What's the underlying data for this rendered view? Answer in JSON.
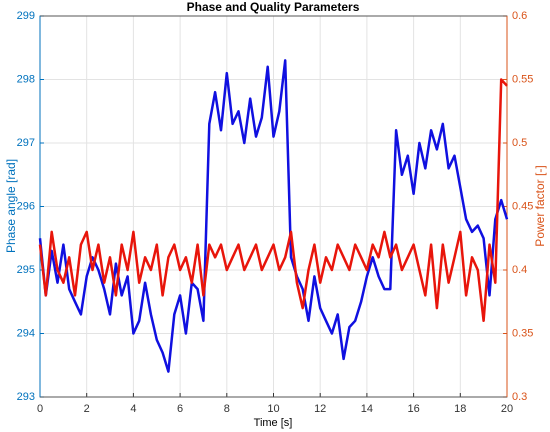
{
  "chart_data": {
    "type": "line",
    "title": "Phase and Quality Parameters",
    "xlabel": "Time [s]",
    "ylabel": "Phase angle [rad]",
    "y2label": "Power factor [-]",
    "x": [
      0,
      0.25,
      0.5,
      0.75,
      1,
      1.25,
      1.5,
      1.75,
      2,
      2.25,
      2.5,
      2.75,
      3,
      3.25,
      3.5,
      3.75,
      4,
      4.25,
      4.5,
      4.75,
      5,
      5.25,
      5.5,
      5.75,
      6,
      6.25,
      6.5,
      6.75,
      7,
      7.25,
      7.5,
      7.75,
      8,
      8.25,
      8.5,
      8.75,
      9,
      9.25,
      9.5,
      9.75,
      10,
      10.25,
      10.5,
      10.75,
      11,
      11.25,
      11.5,
      11.75,
      12,
      12.25,
      12.5,
      12.75,
      13,
      13.25,
      13.5,
      13.75,
      14,
      14.25,
      14.5,
      14.75,
      15,
      15.25,
      15.5,
      15.75,
      16,
      16.25,
      16.5,
      16.75,
      17,
      17.25,
      17.5,
      17.75,
      18,
      18.25,
      18.5,
      18.75,
      19,
      19.25,
      19.5,
      19.75,
      20
    ],
    "series": [
      {
        "name": "Phase angle",
        "color": "#1010e0",
        "axis": "y",
        "values": [
          295.5,
          294.6,
          295.3,
          294.8,
          295.4,
          294.7,
          294.5,
          294.3,
          294.9,
          295.2,
          295.0,
          294.7,
          294.3,
          295.1,
          294.6,
          294.9,
          294.0,
          294.2,
          294.8,
          294.3,
          293.9,
          293.7,
          293.4,
          294.3,
          294.6,
          294.0,
          294.8,
          294.7,
          294.2,
          297.3,
          297.8,
          297.2,
          298.1,
          297.3,
          297.5,
          297.0,
          297.7,
          297.1,
          297.4,
          298.2,
          297.1,
          297.5,
          298.3,
          295.2,
          294.9,
          294.7,
          294.2,
          294.9,
          294.4,
          294.2,
          294.0,
          294.3,
          293.6,
          294.1,
          294.2,
          294.5,
          294.9,
          295.2,
          294.9,
          294.7,
          294.7,
          297.2,
          296.5,
          296.8,
          296.2,
          297.0,
          296.6,
          297.2,
          296.9,
          297.3,
          296.6,
          296.8,
          296.3,
          295.8,
          295.6,
          295.7,
          295.5,
          294.6,
          295.8,
          296.1,
          295.8
        ]
      },
      {
        "name": "Power factor",
        "color": "#e8150b",
        "axis": "y2",
        "values": [
          0.42,
          0.38,
          0.43,
          0.4,
          0.39,
          0.41,
          0.38,
          0.42,
          0.43,
          0.4,
          0.42,
          0.39,
          0.41,
          0.38,
          0.42,
          0.4,
          0.43,
          0.39,
          0.41,
          0.4,
          0.42,
          0.38,
          0.41,
          0.42,
          0.4,
          0.41,
          0.39,
          0.42,
          0.38,
          0.42,
          0.41,
          0.42,
          0.4,
          0.41,
          0.42,
          0.4,
          0.41,
          0.42,
          0.4,
          0.41,
          0.42,
          0.4,
          0.41,
          0.43,
          0.39,
          0.37,
          0.4,
          0.42,
          0.39,
          0.41,
          0.4,
          0.42,
          0.41,
          0.4,
          0.42,
          0.41,
          0.4,
          0.42,
          0.41,
          0.43,
          0.41,
          0.42,
          0.4,
          0.41,
          0.42,
          0.4,
          0.38,
          0.42,
          0.37,
          0.42,
          0.39,
          0.41,
          0.43,
          0.38,
          0.41,
          0.4,
          0.36,
          0.42,
          0.39,
          0.55,
          0.545
        ]
      }
    ],
    "xlim": [
      0,
      20
    ],
    "xticks": [
      0,
      2,
      4,
      6,
      8,
      10,
      12,
      14,
      16,
      18,
      20
    ],
    "ylim": [
      293,
      299
    ],
    "yticks": [
      293,
      294,
      295,
      296,
      297,
      298,
      299
    ],
    "y2lim": [
      0.3,
      0.6
    ],
    "y2ticks": [
      0.3,
      0.35,
      0.4,
      0.45,
      0.5,
      0.55,
      0.6
    ],
    "grid": true
  }
}
